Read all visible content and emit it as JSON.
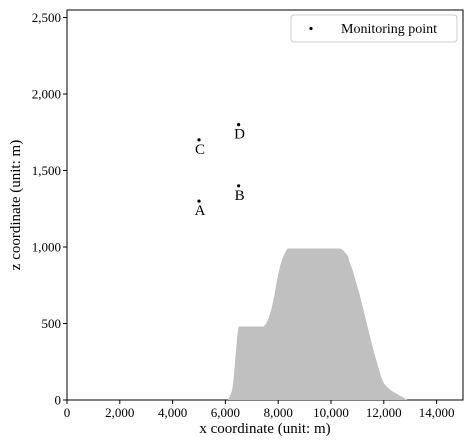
{
  "chart_data": {
    "type": "scatter",
    "xlabel": "x coordinate (unit: m)",
    "ylabel": "z coordinate (unit: m)",
    "xlim": [
      0,
      15000
    ],
    "ylim": [
      0,
      2600
    ],
    "x_ticks": [
      0,
      2000,
      4000,
      6000,
      8000,
      10000,
      12000,
      14000
    ],
    "x_tick_labels": [
      "0",
      "2,000",
      "4,000",
      "6,000",
      "8,000",
      "10,000",
      "12,000",
      "14,000"
    ],
    "y_ticks": [
      0,
      500,
      1000,
      1500,
      2000,
      2500
    ],
    "y_tick_labels": [
      "0",
      "500",
      "1,000",
      "1,500",
      "2,000",
      "2,500"
    ],
    "grid": false,
    "legend": {
      "placement": "top-right",
      "entries": [
        "Monitoring point"
      ]
    },
    "series": [
      {
        "name": "Monitoring point",
        "points": [
          {
            "label": "A",
            "x": 5000,
            "y": 1300
          },
          {
            "label": "B",
            "x": 6500,
            "y": 1400
          },
          {
            "label": "C",
            "x": 5000,
            "y": 1700
          },
          {
            "label": "D",
            "x": 6500,
            "y": 1800
          }
        ]
      }
    ],
    "terrain": {
      "color": "#c0c0c0",
      "profile": [
        [
          6100,
          0
        ],
        [
          6150,
          20
        ],
        [
          6250,
          60
        ],
        [
          6300,
          120
        ],
        [
          6350,
          220
        ],
        [
          6400,
          320
        ],
        [
          6450,
          420
        ],
        [
          6500,
          480
        ],
        [
          7450,
          480
        ],
        [
          7550,
          500
        ],
        [
          7650,
          540
        ],
        [
          7750,
          600
        ],
        [
          7850,
          680
        ],
        [
          7950,
          780
        ],
        [
          8050,
          860
        ],
        [
          8150,
          920
        ],
        [
          8250,
          960
        ],
        [
          8350,
          990
        ],
        [
          10350,
          990
        ],
        [
          10450,
          980
        ],
        [
          10550,
          960
        ],
        [
          10650,
          940
        ],
        [
          10700,
          900
        ],
        [
          10800,
          860
        ],
        [
          10900,
          800
        ],
        [
          11000,
          740
        ],
        [
          11100,
          680
        ],
        [
          11200,
          610
        ],
        [
          11300,
          540
        ],
        [
          11400,
          470
        ],
        [
          11500,
          400
        ],
        [
          11600,
          330
        ],
        [
          11700,
          270
        ],
        [
          11800,
          210
        ],
        [
          11900,
          150
        ],
        [
          12000,
          110
        ],
        [
          12150,
          80
        ],
        [
          12300,
          60
        ],
        [
          12500,
          40
        ],
        [
          12700,
          20
        ],
        [
          12900,
          0
        ]
      ]
    }
  }
}
